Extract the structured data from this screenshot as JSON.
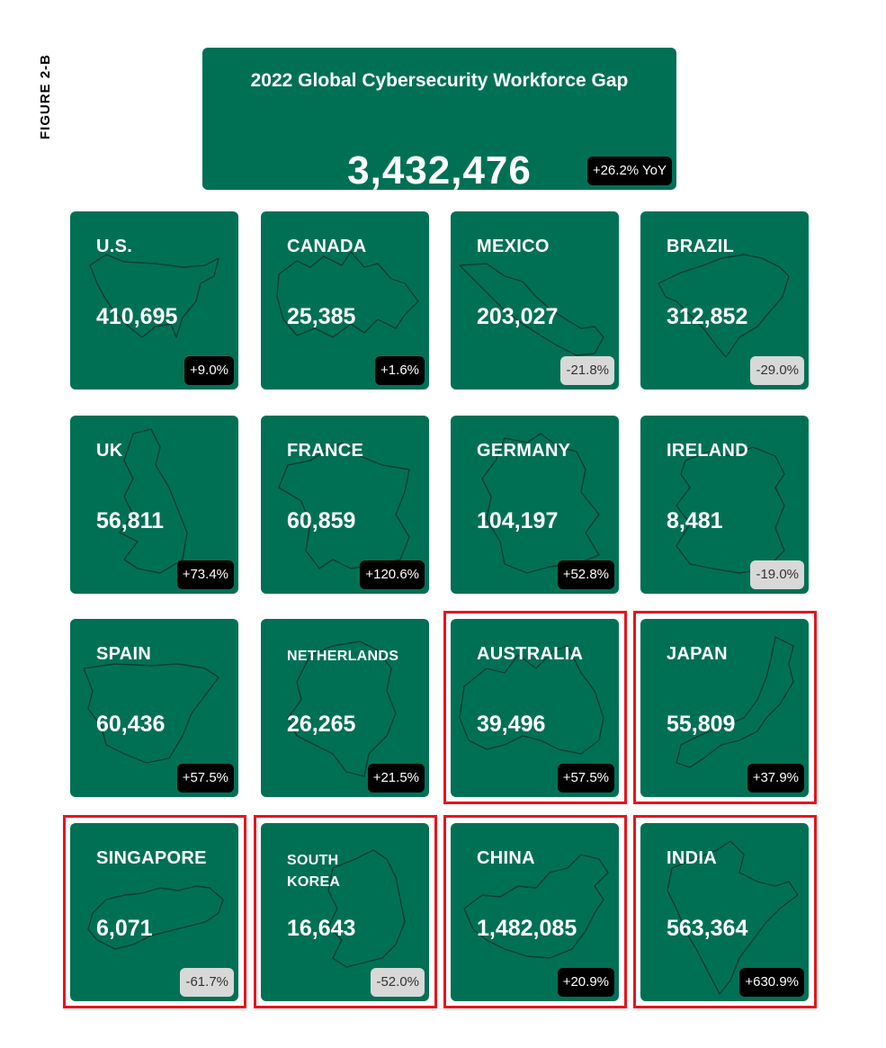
{
  "figure_label": "FIGURE 2-B",
  "chart_data": {
    "type": "table",
    "title": "2022 Global Cybersecurity Workforce Gap",
    "total": "3,432,476",
    "total_change": "+26.2% YoY",
    "colors": {
      "tile": "#007055",
      "positive_badge": "#000000",
      "negative_badge": "#d8d8d8",
      "highlight": "#e8141c"
    },
    "countries": [
      {
        "name": "U.S.",
        "gap": "410,695",
        "change": "+9.0%",
        "change_value": 9.0,
        "highlighted": false,
        "map_icon": "us-map"
      },
      {
        "name": "CANADA",
        "gap": "25,385",
        "change": "+1.6%",
        "change_value": 1.6,
        "highlighted": false,
        "map_icon": "canada-map"
      },
      {
        "name": "MEXICO",
        "gap": "203,027",
        "change": "-21.8%",
        "change_value": -21.8,
        "highlighted": false,
        "map_icon": "mexico-map"
      },
      {
        "name": "BRAZIL",
        "gap": "312,852",
        "change": "-29.0%",
        "change_value": -29.0,
        "highlighted": false,
        "map_icon": "brazil-map"
      },
      {
        "name": "UK",
        "gap": "56,811",
        "change": "+73.4%",
        "change_value": 73.4,
        "highlighted": false,
        "map_icon": "uk-map"
      },
      {
        "name": "FRANCE",
        "gap": "60,859",
        "change": "+120.6%",
        "change_value": 120.6,
        "highlighted": false,
        "map_icon": "france-map"
      },
      {
        "name": "GERMANY",
        "gap": "104,197",
        "change": "+52.8%",
        "change_value": 52.8,
        "highlighted": false,
        "map_icon": "germany-map"
      },
      {
        "name": "IRELAND",
        "gap": "8,481",
        "change": "-19.0%",
        "change_value": -19.0,
        "highlighted": false,
        "map_icon": "ireland-map"
      },
      {
        "name": "SPAIN",
        "gap": "60,436",
        "change": "+57.5%",
        "change_value": 57.5,
        "highlighted": false,
        "map_icon": "spain-map"
      },
      {
        "name": "NETHERLANDS",
        "gap": "26,265",
        "change": "+21.5%",
        "change_value": 21.5,
        "highlighted": false,
        "map_icon": "netherlands-map"
      },
      {
        "name": "AUSTRALIA",
        "gap": "39,496",
        "change": "+57.5%",
        "change_value": 57.5,
        "highlighted": true,
        "map_icon": "australia-map"
      },
      {
        "name": "JAPAN",
        "gap": "55,809",
        "change": "+37.9%",
        "change_value": 37.9,
        "highlighted": true,
        "map_icon": "japan-map"
      },
      {
        "name": "SINGAPORE",
        "gap": "6,071",
        "change": "-61.7%",
        "change_value": -61.7,
        "highlighted": true,
        "map_icon": "singapore-map"
      },
      {
        "name": "SOUTH\nKOREA",
        "gap": "16,643",
        "change": "-52.0%",
        "change_value": -52.0,
        "highlighted": true,
        "map_icon": "south-korea-map"
      },
      {
        "name": "CHINA",
        "gap": "1,482,085",
        "change": "+20.9%",
        "change_value": 20.9,
        "highlighted": true,
        "map_icon": "china-map"
      },
      {
        "name": "INDIA",
        "gap": "563,364",
        "change": "+630.9%",
        "change_value": 630.9,
        "highlighted": true,
        "map_icon": "india-map"
      }
    ]
  }
}
